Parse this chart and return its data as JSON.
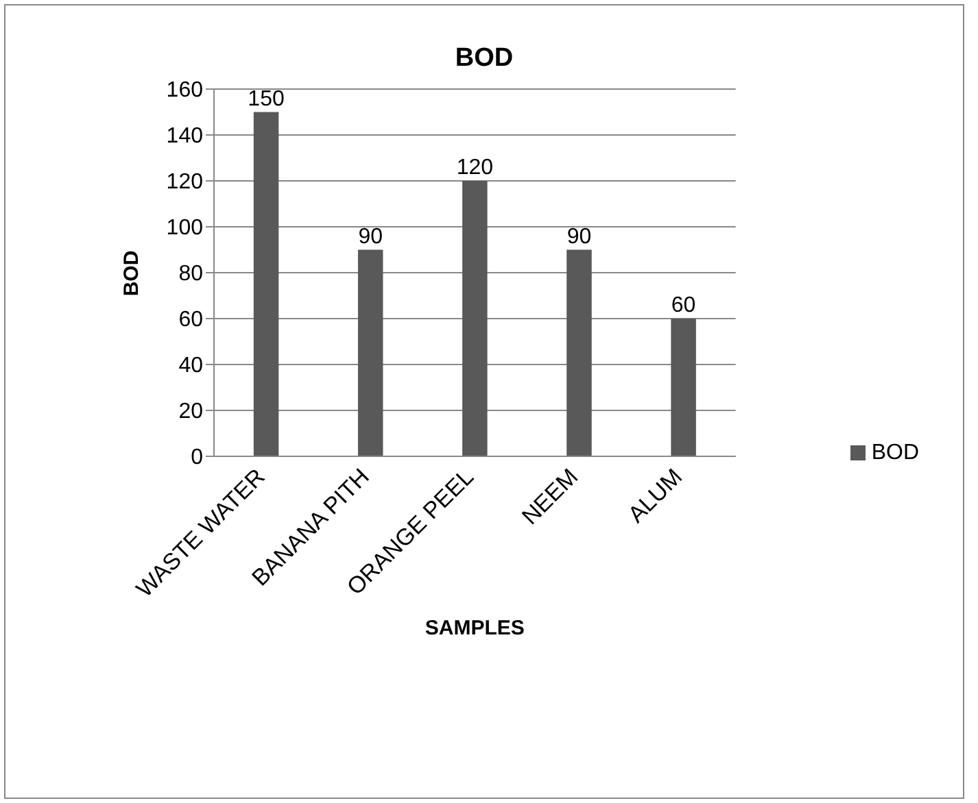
{
  "chart_data": {
    "type": "bar",
    "title": "BOD",
    "xlabel": "SAMPLES",
    "ylabel": "BOD",
    "categories": [
      "WASTE WATER",
      "BANANA PITH",
      "ORANGE PEEL",
      "NEEM",
      "ALUM"
    ],
    "series": [
      {
        "name": "BOD",
        "color": "#595959",
        "values": [
          150,
          90,
          120,
          90,
          60
        ]
      }
    ],
    "ylim": [
      0,
      160
    ],
    "yticks": [
      0,
      20,
      40,
      60,
      80,
      100,
      120,
      140,
      160
    ],
    "grid": "y",
    "legend": "right",
    "data_labels": true
  }
}
